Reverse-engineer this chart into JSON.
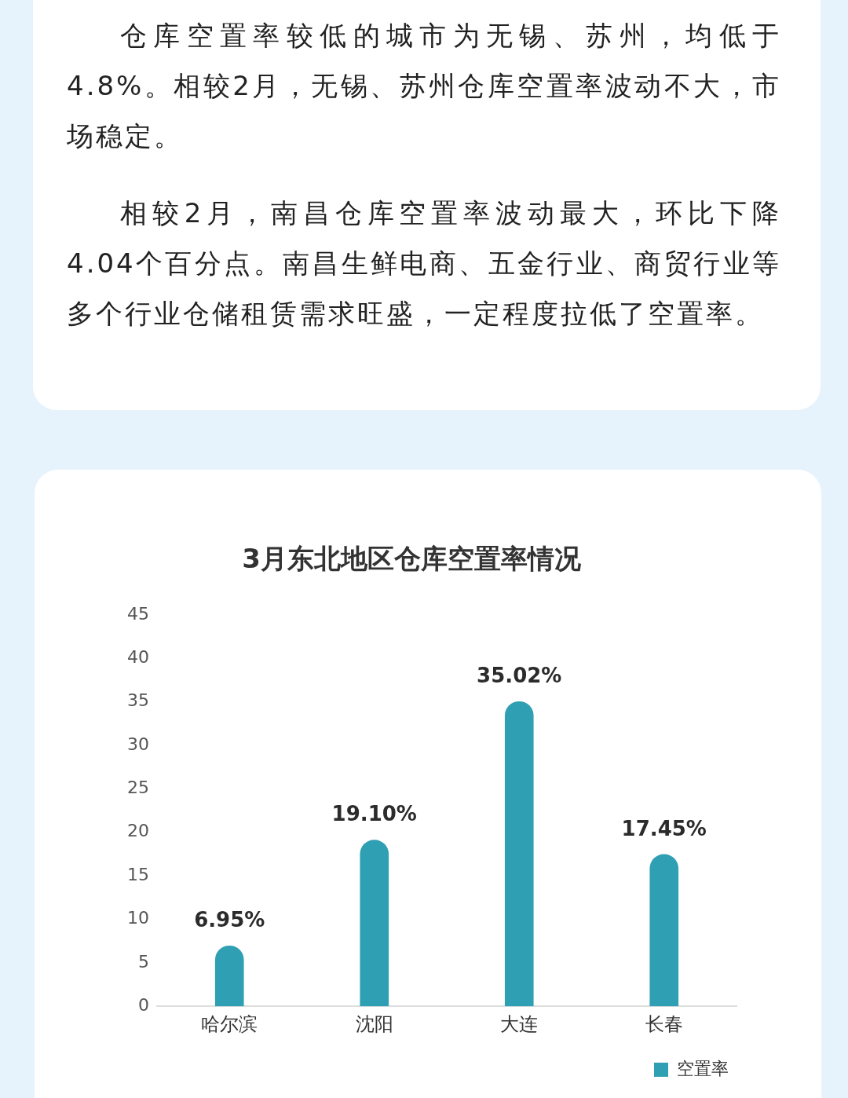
{
  "chart_data": {
    "type": "bar",
    "title": "3月东北地区仓库空置率情况",
    "categories": [
      "哈尔滨",
      "沈阳",
      "大连",
      "长春"
    ],
    "series": [
      {
        "name": "空置率",
        "color": "#2fa0b3",
        "values": [
          6.95,
          19.1,
          35.02,
          17.45
        ],
        "value_labels": [
          "6.95%",
          "19.10%",
          "35.02%",
          "17.45%"
        ]
      }
    ],
    "ylim": [
      0,
      45
    ],
    "yticks": [
      0,
      5,
      10,
      15,
      20,
      25,
      30,
      35,
      40,
      45
    ],
    "grid": false,
    "legend": "bottom right",
    "annotations": [
      "仓库空置率较低的城市为无锡、苏州，均低于4.8%。相较2月，无锡、苏州仓库空置率波动不大，市场稳定。",
      "相较2月，南昌仓库空置率波动最大，环比下降4.04个百分点。南昌生鲜电商、五金行业、商贸行业等多个行业仓储租赁需求旺盛，一定程度拉低了空置率。"
    ]
  }
}
